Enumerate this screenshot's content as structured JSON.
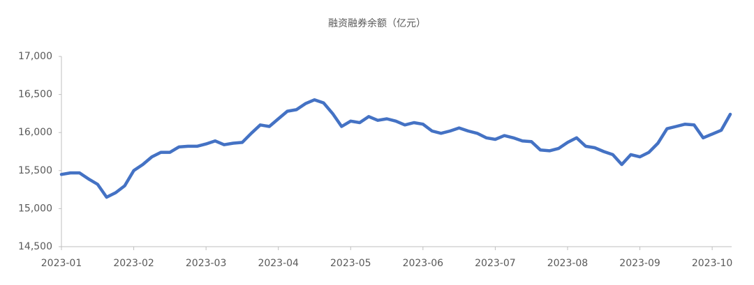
{
  "chart_data": {
    "type": "line",
    "title": "融资融券余额（亿元）",
    "categories": [
      "2023-01",
      null,
      null,
      null,
      null,
      null,
      null,
      null,
      "2023-02",
      null,
      null,
      null,
      null,
      null,
      null,
      null,
      "2023-03",
      null,
      null,
      null,
      null,
      null,
      null,
      null,
      "2023-04",
      null,
      null,
      null,
      null,
      null,
      null,
      null,
      "2023-05",
      null,
      null,
      null,
      null,
      null,
      null,
      null,
      "2023-06",
      null,
      null,
      null,
      null,
      null,
      null,
      null,
      "2023-07",
      null,
      null,
      null,
      null,
      null,
      null,
      null,
      "2023-08",
      null,
      null,
      null,
      null,
      null,
      null,
      null,
      "2023-09",
      null,
      null,
      null,
      null,
      null,
      null,
      null,
      "2023-10",
      null,
      null
    ],
    "series": [
      {
        "name": "融资融券余额",
        "color": "#4472c4",
        "values": [
          15450,
          15470,
          15470,
          15390,
          15320,
          15150,
          15210,
          15300,
          15500,
          15580,
          15680,
          15740,
          15740,
          15810,
          15820,
          15820,
          15850,
          15890,
          15840,
          15860,
          15870,
          15990,
          16100,
          16080,
          16180,
          16280,
          16300,
          16380,
          16430,
          16390,
          16250,
          16080,
          16150,
          16130,
          16210,
          16160,
          16180,
          16150,
          16100,
          16130,
          16110,
          16020,
          15990,
          16020,
          16060,
          16020,
          15990,
          15930,
          15910,
          15960,
          15930,
          15890,
          15880,
          15770,
          15760,
          15790,
          15870,
          15930,
          15820,
          15800,
          15750,
          15710,
          15580,
          15710,
          15680,
          15740,
          15860,
          16050,
          16080,
          16110,
          16100,
          15930,
          15980,
          16030,
          16240
        ]
      }
    ],
    "ylim": [
      14500,
      17000
    ],
    "yticks": [
      {
        "value": 14500,
        "label": "14,500"
      },
      {
        "value": 15000,
        "label": "15,000"
      },
      {
        "value": 15500,
        "label": "15,500"
      },
      {
        "value": 16000,
        "label": "16,000"
      },
      {
        "value": 16500,
        "label": "16,500"
      },
      {
        "value": 17000,
        "label": "17,000"
      }
    ],
    "grid": false,
    "legend": false
  }
}
